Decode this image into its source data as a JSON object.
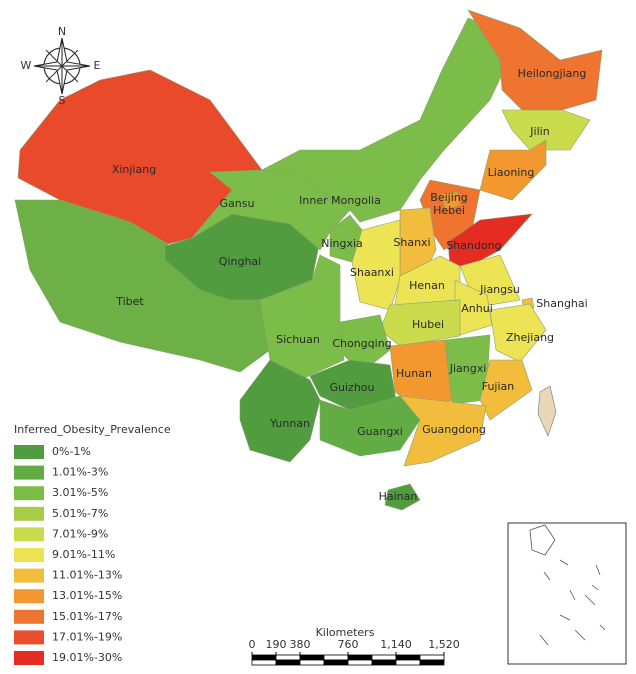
{
  "compass": {
    "n": "N",
    "e": "E",
    "s": "S",
    "w": "W"
  },
  "provinces": [
    {
      "name": "Xinjiang",
      "color": "#ea4a2c"
    },
    {
      "name": "Tibet",
      "color": "#6cb046"
    },
    {
      "name": "Qinghai",
      "color": "#509c3e"
    },
    {
      "name": "Gansu",
      "color": "#7cbc48"
    },
    {
      "name": "Inner Mongolia",
      "color": "#7cbc48"
    },
    {
      "name": "Heilongjiang",
      "color": "#ee7430"
    },
    {
      "name": "Jilin",
      "color": "#cadb4c"
    },
    {
      "name": "Liaoning",
      "color": "#f2982e"
    },
    {
      "name": "Hebei",
      "color": "#ee7430"
    },
    {
      "name": "Beijing",
      "color": "#f2982e"
    },
    {
      "name": "Shandong",
      "color": "#e42c22"
    },
    {
      "name": "Shanxi",
      "color": "#f2bc3c"
    },
    {
      "name": "Ningxia",
      "color": "#7cbc48"
    },
    {
      "name": "Shaanxi",
      "color": "#ece454"
    },
    {
      "name": "Henan",
      "color": "#ece454"
    },
    {
      "name": "Jiangsu",
      "color": "#ece454"
    },
    {
      "name": "Anhui",
      "color": "#ece454"
    },
    {
      "name": "Shanghai",
      "color": "#f2bc3c"
    },
    {
      "name": "Zhejiang",
      "color": "#ece454"
    },
    {
      "name": "Hubei",
      "color": "#cadb4c"
    },
    {
      "name": "Chongqing",
      "color": "#7cbc48"
    },
    {
      "name": "Sichuan",
      "color": "#7cbc48"
    },
    {
      "name": "Hunan",
      "color": "#f2982e"
    },
    {
      "name": "Jiangxi",
      "color": "#7cbc48"
    },
    {
      "name": "Fujian",
      "color": "#f2bc3c"
    },
    {
      "name": "Guizhou",
      "color": "#509c3e"
    },
    {
      "name": "Yunnan",
      "color": "#509c3e"
    },
    {
      "name": "Guangxi",
      "color": "#62ac44"
    },
    {
      "name": "Guangdong",
      "color": "#f2bc3c"
    },
    {
      "name": "Hainan",
      "color": "#509c3e"
    }
  ],
  "legend": {
    "title": "Inferred_Obesity_Prevalence",
    "items": [
      {
        "label": "0%-1%",
        "color": "#509c3e"
      },
      {
        "label": "1.01%-3%",
        "color": "#62ac44"
      },
      {
        "label": "3.01%-5%",
        "color": "#7cbc48"
      },
      {
        "label": "5.01%-7%",
        "color": "#a6cc48"
      },
      {
        "label": "7.01%-9%",
        "color": "#cadb4c"
      },
      {
        "label": "9.01%-11%",
        "color": "#ece454"
      },
      {
        "label": "11.01%-13%",
        "color": "#f2bc3c"
      },
      {
        "label": "13.01%-15%",
        "color": "#f2982e"
      },
      {
        "label": "15.01%-17%",
        "color": "#ee7430"
      },
      {
        "label": "17.01%-19%",
        "color": "#ea4e2c"
      },
      {
        "label": "19.01%-30%",
        "color": "#e42c22"
      }
    ]
  },
  "scale": {
    "title": "Kilometers",
    "ticks": [
      0,
      190,
      380,
      760,
      {
        "value": 1140,
        "label": "1,140"
      },
      {
        "value": 1520,
        "label": "1,520"
      }
    ]
  }
}
